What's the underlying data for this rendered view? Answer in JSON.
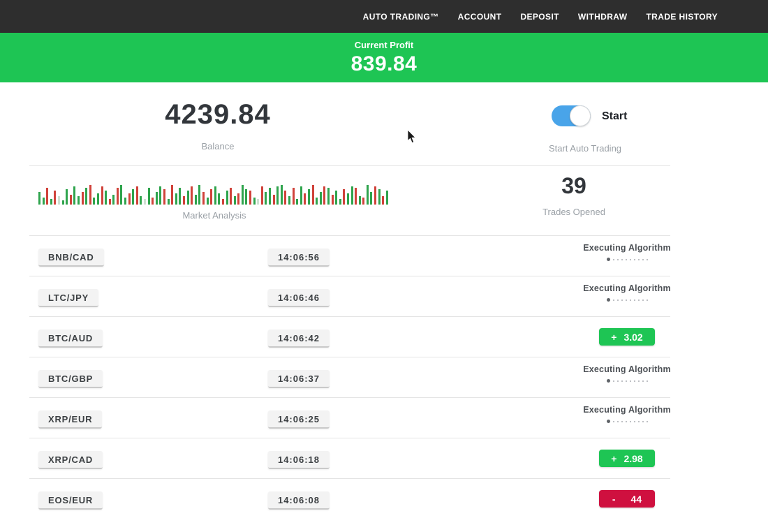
{
  "nav": {
    "items": [
      {
        "label": "AUTO TRADING™"
      },
      {
        "label": "ACCOUNT"
      },
      {
        "label": "DEPOSIT"
      },
      {
        "label": "WITHDRAW"
      },
      {
        "label": "TRADE HISTORY"
      }
    ]
  },
  "profit_banner": {
    "label": "Current Profit",
    "value": "839.84"
  },
  "account": {
    "balance": "4239.84",
    "balance_label": "Balance",
    "toggle_label": "Start",
    "toggle_sublabel": "Start Auto Trading",
    "toggle_state": "on"
  },
  "market": {
    "chart_label": "Market Analysis",
    "trades_opened": "39",
    "trades_opened_label": "Trades Opened",
    "bars": [
      [
        "g",
        18
      ],
      [
        "g",
        10
      ],
      [
        "r",
        24
      ],
      [
        "g",
        8
      ],
      [
        "r",
        20
      ],
      [
        "l",
        12
      ],
      [
        "g",
        6
      ],
      [
        "g",
        22
      ],
      [
        "r",
        14
      ],
      [
        "g",
        26
      ],
      [
        "g",
        12
      ],
      [
        "r",
        18
      ],
      [
        "g",
        24
      ],
      [
        "r",
        28
      ],
      [
        "g",
        10
      ],
      [
        "g",
        16
      ],
      [
        "r",
        26
      ],
      [
        "g",
        20
      ],
      [
        "r",
        8
      ],
      [
        "g",
        14
      ],
      [
        "r",
        24
      ],
      [
        "g",
        28
      ],
      [
        "g",
        10
      ],
      [
        "r",
        16
      ],
      [
        "g",
        22
      ],
      [
        "r",
        26
      ],
      [
        "g",
        12
      ],
      [
        "l",
        8
      ],
      [
        "g",
        24
      ],
      [
        "r",
        10
      ],
      [
        "g",
        18
      ],
      [
        "g",
        26
      ],
      [
        "r",
        22
      ],
      [
        "g",
        8
      ],
      [
        "r",
        28
      ],
      [
        "g",
        16
      ],
      [
        "g",
        24
      ],
      [
        "r",
        12
      ],
      [
        "g",
        20
      ],
      [
        "r",
        26
      ],
      [
        "g",
        14
      ],
      [
        "g",
        28
      ],
      [
        "r",
        18
      ],
      [
        "g",
        10
      ],
      [
        "r",
        22
      ],
      [
        "g",
        26
      ],
      [
        "g",
        16
      ],
      [
        "r",
        8
      ],
      [
        "g",
        20
      ],
      [
        "r",
        24
      ],
      [
        "g",
        12
      ],
      [
        "r",
        16
      ],
      [
        "g",
        28
      ],
      [
        "g",
        22
      ],
      [
        "r",
        20
      ],
      [
        "g",
        10
      ],
      [
        "l",
        8
      ],
      [
        "r",
        26
      ],
      [
        "g",
        18
      ],
      [
        "g",
        24
      ],
      [
        "r",
        14
      ],
      [
        "g",
        26
      ],
      [
        "g",
        28
      ],
      [
        "r",
        20
      ],
      [
        "g",
        12
      ],
      [
        "r",
        24
      ],
      [
        "g",
        8
      ],
      [
        "g",
        26
      ],
      [
        "r",
        16
      ],
      [
        "g",
        22
      ],
      [
        "r",
        28
      ],
      [
        "g",
        10
      ],
      [
        "g",
        18
      ],
      [
        "r",
        26
      ],
      [
        "g",
        24
      ],
      [
        "r",
        14
      ],
      [
        "g",
        20
      ],
      [
        "g",
        8
      ],
      [
        "r",
        22
      ],
      [
        "g",
        16
      ],
      [
        "g",
        26
      ],
      [
        "r",
        24
      ],
      [
        "g",
        12
      ],
      [
        "r",
        10
      ],
      [
        "g",
        28
      ],
      [
        "g",
        18
      ],
      [
        "r",
        26
      ],
      [
        "g",
        22
      ],
      [
        "r",
        12
      ],
      [
        "g",
        20
      ]
    ]
  },
  "trades": [
    {
      "pair": "BNB/CAD",
      "time": "14:06:56",
      "status": {
        "type": "executing",
        "label": "Executing Algorithm"
      }
    },
    {
      "pair": "LTC/JPY",
      "time": "14:06:46",
      "status": {
        "type": "executing",
        "label": "Executing Algorithm"
      }
    },
    {
      "pair": "BTC/AUD",
      "time": "14:06:42",
      "status": {
        "type": "profit",
        "sign": "+",
        "value": "3.02"
      }
    },
    {
      "pair": "BTC/GBP",
      "time": "14:06:37",
      "status": {
        "type": "executing",
        "label": "Executing Algorithm"
      }
    },
    {
      "pair": "XRP/EUR",
      "time": "14:06:25",
      "status": {
        "type": "executing",
        "label": "Executing Algorithm"
      }
    },
    {
      "pair": "XRP/CAD",
      "time": "14:06:18",
      "status": {
        "type": "profit",
        "sign": "+",
        "value": "2.98"
      }
    },
    {
      "pair": "EOS/EUR",
      "time": "14:06:08",
      "status": {
        "type": "loss",
        "sign": "-",
        "value": "44"
      }
    }
  ],
  "colors": {
    "accent_green": "#1ec554",
    "accent_red": "#cf103f",
    "toggle_blue": "#49a4e9",
    "navbar_bg": "#2e2e2e"
  }
}
